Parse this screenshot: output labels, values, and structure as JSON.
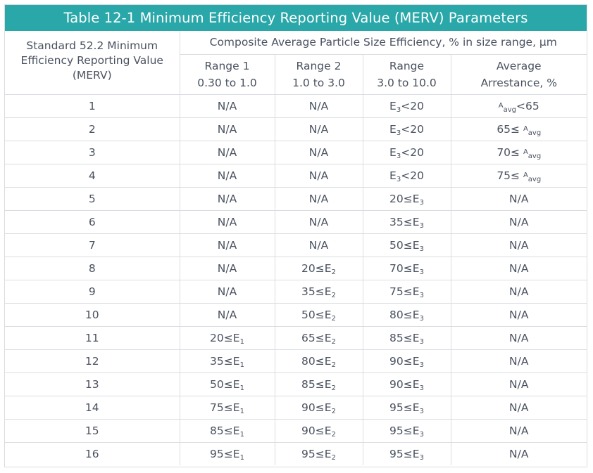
{
  "title": "Table 12-1 Minimum Efficiency Reporting Value (MERV) Parameters",
  "headers": {
    "merv": "Standard 52.2 Minimum Efficiency Reporting Value (MERV)",
    "composite": "Composite Average Particle Size Efficiency, % in size range, µm",
    "range1_title": "Range 1",
    "range1_sub": "0.30 to 1.0",
    "range2_title": "Range 2",
    "range2_sub": "1.0 to 3.0",
    "range3_title": "Range",
    "range3_sub": "3.0 to 10.0",
    "arrestance_title": "Average",
    "arrestance_sub": "Arrestance, %"
  },
  "rows": [
    {
      "merv": "1",
      "r1": "N/A",
      "r2": "N/A",
      "r3": "E3<20",
      "arr": "Aavg<65"
    },
    {
      "merv": "2",
      "r1": "N/A",
      "r2": "N/A",
      "r3": "E3<20",
      "arr": "65≤ Aavg"
    },
    {
      "merv": "3",
      "r1": "N/A",
      "r2": "N/A",
      "r3": "E3<20",
      "arr": "70≤ Aavg"
    },
    {
      "merv": "4",
      "r1": "N/A",
      "r2": "N/A",
      "r3": "E3<20",
      "arr": "75≤ Aavg"
    },
    {
      "merv": "5",
      "r1": "N/A",
      "r2": "N/A",
      "r3": "20≤E3",
      "arr": "N/A"
    },
    {
      "merv": "6",
      "r1": "N/A",
      "r2": "N/A",
      "r3": "35≤E3",
      "arr": "N/A"
    },
    {
      "merv": "7",
      "r1": "N/A",
      "r2": "N/A",
      "r3": "50≤E3",
      "arr": "N/A"
    },
    {
      "merv": "8",
      "r1": "N/A",
      "r2": "20≤E2",
      "r3": "70≤E3",
      "arr": "N/A"
    },
    {
      "merv": "9",
      "r1": "N/A",
      "r2": "35≤E2",
      "r3": "75≤E3",
      "arr": "N/A"
    },
    {
      "merv": "10",
      "r1": "N/A",
      "r2": "50≤E2",
      "r3": "80≤E3",
      "arr": "N/A"
    },
    {
      "merv": "11",
      "r1": "20≤E1",
      "r2": "65≤E2",
      "r3": "85≤E3",
      "arr": "N/A"
    },
    {
      "merv": "12",
      "r1": "35≤E1",
      "r2": "80≤E2",
      "r3": "90≤E3",
      "arr": "N/A"
    },
    {
      "merv": "13",
      "r1": "50≤E1",
      "r2": "85≤E2",
      "r3": "90≤E3",
      "arr": "N/A"
    },
    {
      "merv": "14",
      "r1": "75≤E1",
      "r2": "90≤E2",
      "r3": "95≤E3",
      "arr": "N/A"
    },
    {
      "merv": "15",
      "r1": "85≤E1",
      "r2": "90≤E2",
      "r3": "95≤E3",
      "arr": "N/A"
    },
    {
      "merv": "16",
      "r1": "95≤E1",
      "r2": "95≤E2",
      "r3": "95≤E3",
      "arr": "N/A"
    }
  ]
}
